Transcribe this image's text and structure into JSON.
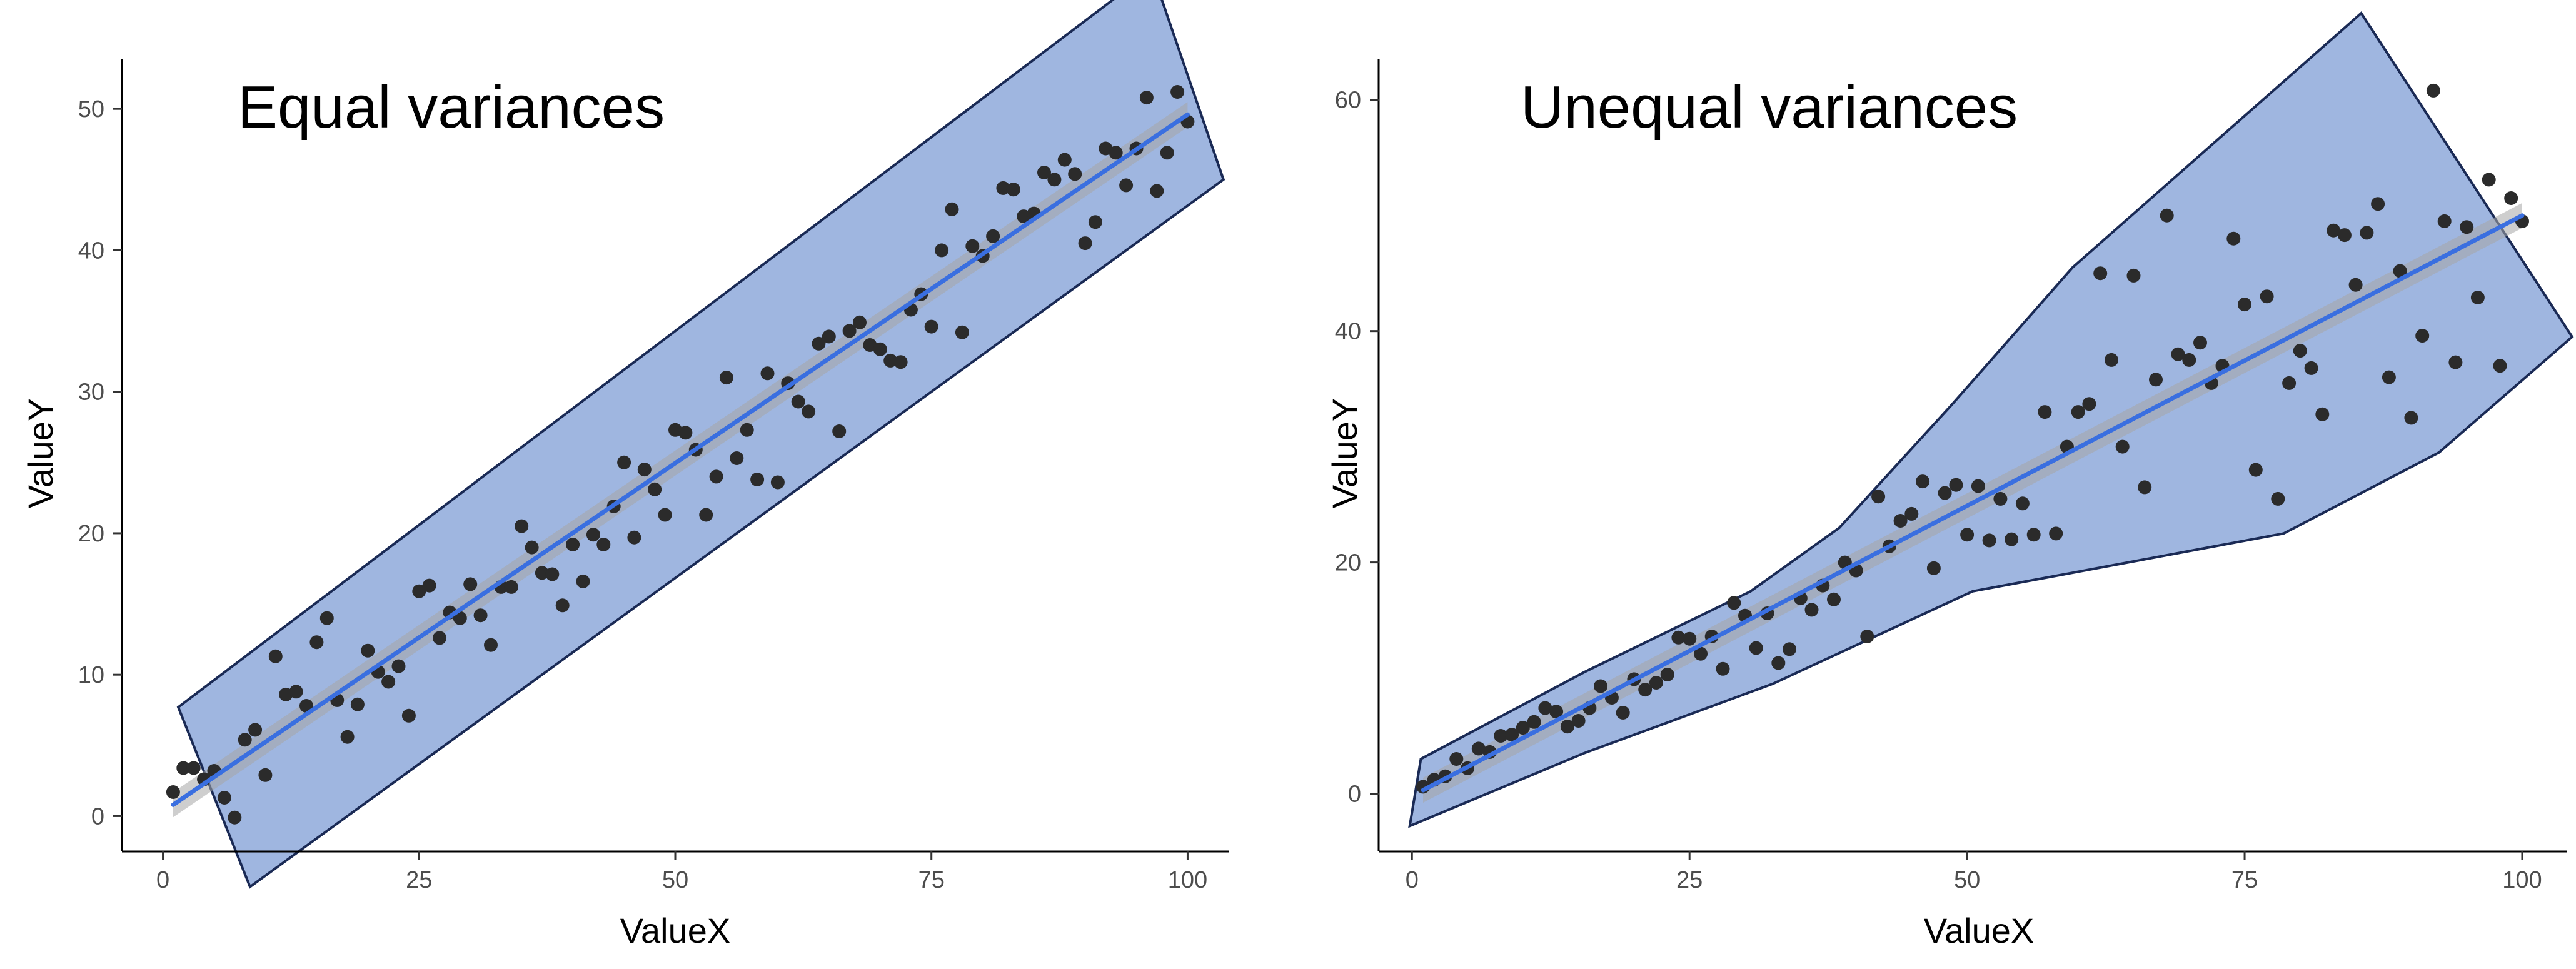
{
  "chart_data": [
    {
      "type": "scatter",
      "title": "Equal variances",
      "xlabel": "ValueX",
      "ylabel": "ValueY",
      "xlim": [
        -4,
        104
      ],
      "ylim": [
        -2.5,
        53.5
      ],
      "xticks": [
        "0",
        "25",
        "50",
        "75",
        "100"
      ],
      "yticks": [
        "0",
        "10",
        "20",
        "30",
        "40",
        "50"
      ],
      "grid": false,
      "colors": {
        "points": "#2b2b2b",
        "fit": "#3a6fe0",
        "ci": "#a6a6a6",
        "region": "#7f9ed6",
        "region_edge": "#1a2a55"
      },
      "fit_line": {
        "x": [
          1,
          100
        ],
        "y": [
          0.8,
          49.6
        ]
      },
      "region": [
        [
          1.5,
          7.7
        ],
        [
          96.5,
          59.8
        ],
        [
          103.5,
          45.0
        ],
        [
          8.5,
          -5.0
        ]
      ],
      "points": {
        "x": [
          1,
          2,
          3,
          4,
          5,
          6,
          7,
          8,
          9,
          10,
          11,
          12,
          13,
          14,
          15,
          16,
          17,
          18,
          19,
          20,
          21,
          22,
          23,
          24,
          25,
          26,
          27,
          28,
          29,
          30,
          31,
          32,
          33,
          34,
          35,
          36,
          37,
          38,
          39,
          40,
          41,
          42,
          43,
          44,
          45,
          46,
          47,
          48,
          49,
          50,
          51,
          52,
          53,
          54,
          55,
          56,
          57,
          58,
          59,
          60,
          61,
          62,
          63,
          64,
          65,
          66,
          67,
          68,
          69,
          70,
          71,
          72,
          73,
          74,
          75,
          76,
          77,
          78,
          79,
          80,
          81,
          82,
          83,
          84,
          85,
          86,
          87,
          88,
          89,
          90,
          91,
          92,
          93,
          94,
          95,
          96,
          97,
          98,
          99,
          100
        ],
        "y": [
          1.7,
          3.4,
          3.4,
          2.6,
          3.2,
          1.3,
          -0.1,
          5.4,
          6.1,
          2.9,
          11.3,
          8.6,
          8.8,
          7.8,
          12.3,
          14.0,
          8.2,
          5.6,
          7.9,
          11.7,
          10.2,
          9.5,
          10.6,
          7.1,
          15.9,
          16.3,
          12.6,
          14.4,
          14.0,
          16.4,
          14.2,
          12.1,
          16.2,
          16.2,
          20.5,
          19.0,
          17.2,
          17.1,
          14.9,
          19.2,
          16.6,
          19.9,
          19.2,
          21.9,
          25.0,
          19.7,
          24.5,
          23.1,
          21.3,
          27.3,
          27.1,
          25.9,
          21.3,
          24.0,
          31.0,
          25.3,
          27.3,
          23.8,
          31.3,
          23.6,
          30.6,
          29.3,
          28.6,
          33.4,
          33.9,
          27.2,
          34.3,
          34.9,
          33.3,
          33.0,
          32.2,
          32.1,
          35.8,
          36.9,
          34.6,
          40.0,
          42.9,
          34.2,
          40.3,
          39.6,
          41.0,
          44.4,
          44.3,
          42.4,
          42.6,
          45.5,
          45.0,
          46.4,
          45.4,
          40.5,
          42.0,
          47.2,
          46.9,
          44.6,
          47.2,
          50.8,
          44.2,
          46.9,
          51.2,
          49.1
        ]
      }
    },
    {
      "type": "scatter",
      "title": "Unequal variances",
      "xlabel": "ValueX",
      "ylabel": "ValueY",
      "xlim": [
        -3,
        104
      ],
      "ylim": [
        -5,
        63.5
      ],
      "xticks": [
        "0",
        "25",
        "50",
        "75",
        "100"
      ],
      "yticks": [
        "0",
        "20",
        "40",
        "60"
      ],
      "grid": false,
      "colors": {
        "points": "#2b2b2b",
        "fit": "#3a6fe0",
        "ci": "#a6a6a6",
        "region": "#7f9ed6",
        "region_edge": "#1a2a55"
      },
      "fit_line": {
        "x": [
          1,
          100
        ],
        "y": [
          0.3,
          50.0
        ]
      },
      "region": [
        [
          0.8,
          3.0
        ],
        [
          15.5,
          10.5
        ],
        [
          30.5,
          17.5
        ],
        [
          38.5,
          23.0
        ],
        [
          48.5,
          33.5
        ],
        [
          59.5,
          45.5
        ],
        [
          85.5,
          67.5
        ],
        [
          104.5,
          39.5
        ],
        [
          92.5,
          29.5
        ],
        [
          78.5,
          22.5
        ],
        [
          50.5,
          17.5
        ],
        [
          32.5,
          9.5
        ],
        [
          15.5,
          3.5
        ],
        [
          -0.2,
          -2.8
        ]
      ],
      "points": {
        "x": [
          1,
          2,
          3,
          4,
          5,
          6,
          7,
          8,
          9,
          10,
          11,
          12,
          13,
          14,
          15,
          16,
          17,
          18,
          19,
          20,
          21,
          22,
          23,
          24,
          25,
          26,
          27,
          28,
          29,
          30,
          31,
          32,
          33,
          34,
          35,
          36,
          37,
          38,
          39,
          40,
          41,
          42,
          43,
          44,
          45,
          46,
          47,
          48,
          49,
          50,
          51,
          52,
          53,
          54,
          55,
          56,
          57,
          58,
          59,
          60,
          61,
          62,
          63,
          64,
          65,
          66,
          67,
          68,
          69,
          70,
          71,
          72,
          73,
          74,
          75,
          76,
          77,
          78,
          79,
          80,
          81,
          82,
          83,
          84,
          85,
          86,
          87,
          88,
          89,
          90,
          91,
          92,
          93,
          94,
          95,
          96,
          97,
          98,
          99,
          100
        ],
        "y": [
          0.6,
          1.2,
          1.5,
          3.0,
          2.2,
          3.9,
          3.6,
          5.0,
          5.1,
          5.7,
          6.2,
          7.4,
          7.1,
          5.8,
          6.3,
          7.4,
          9.3,
          8.3,
          7.0,
          9.9,
          9.0,
          9.6,
          10.3,
          13.5,
          13.4,
          12.1,
          13.6,
          10.8,
          16.5,
          15.4,
          12.6,
          15.6,
          11.3,
          12.5,
          16.9,
          15.9,
          18.0,
          16.8,
          20.0,
          19.3,
          13.6,
          25.7,
          21.4,
          23.6,
          24.2,
          27.0,
          19.5,
          26.0,
          26.7,
          22.4,
          26.6,
          21.9,
          25.5,
          22.0,
          25.1,
          22.4,
          33.0,
          22.5,
          30.0,
          33.0,
          33.7,
          45.0,
          37.5,
          30.0,
          44.8,
          26.5,
          35.8,
          50.0,
          38.0,
          37.5,
          39.0,
          35.5,
          37.0,
          48.0,
          42.3,
          28.0,
          43.0,
          25.5,
          35.5,
          38.3,
          36.8,
          32.8,
          48.7,
          48.3,
          44.0,
          48.5,
          51.0,
          36.0,
          45.2,
          32.5,
          39.6,
          60.8,
          49.5,
          37.3,
          49.0,
          42.9,
          53.1,
          37.0,
          51.5,
          49.5
        ]
      }
    }
  ]
}
